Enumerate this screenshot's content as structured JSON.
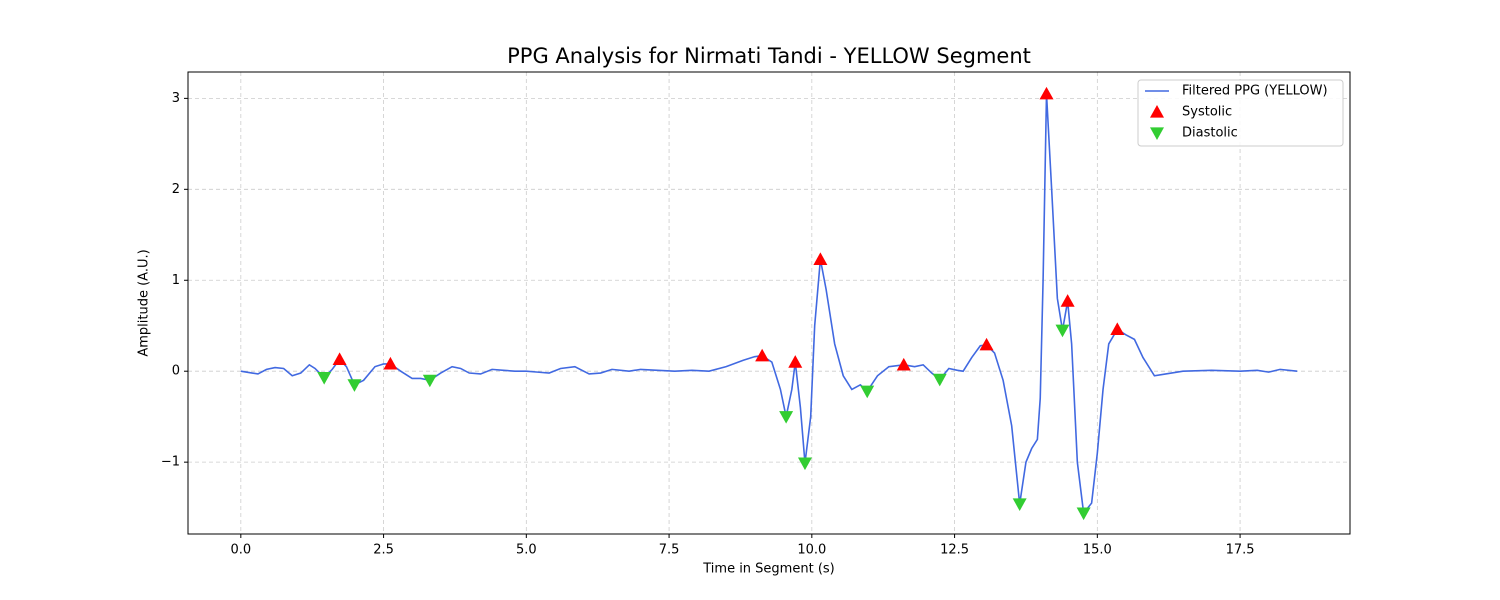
{
  "chart_data": {
    "type": "line",
    "title": "PPG Analysis for Nirmati Tandi - YELLOW Segment",
    "xlabel": "Time in Segment (s)",
    "ylabel": "Amplitude (A.U.)",
    "xlim": [
      -0.925,
      19.425
    ],
    "ylim": [
      -1.79,
      3.29
    ],
    "xticks": [
      {
        "value": 0,
        "label": "0.0"
      },
      {
        "value": 2.5,
        "label": "2.5"
      },
      {
        "value": 5,
        "label": "5.0"
      },
      {
        "value": 7.5,
        "label": "7.5"
      },
      {
        "value": 10,
        "label": "10.0"
      },
      {
        "value": 12.5,
        "label": "12.5"
      },
      {
        "value": 15,
        "label": "15.0"
      },
      {
        "value": 17.5,
        "label": "17.5"
      }
    ],
    "yticks": [
      {
        "value": -1,
        "label": "−1"
      },
      0,
      1,
      2,
      3
    ],
    "grid": true,
    "legend": "upper right",
    "series": [
      {
        "name": "Filtered PPG (YELLOW)",
        "color": "#4169e1",
        "marker": "line",
        "x": [
          0,
          0.2,
          0.3,
          0.45,
          0.6,
          0.75,
          0.9,
          1.05,
          1.2,
          1.3,
          1.46,
          1.6,
          1.73,
          1.85,
          1.99,
          2.15,
          2.35,
          2.5,
          2.62,
          2.8,
          3.0,
          3.15,
          3.31,
          3.5,
          3.7,
          3.85,
          4.0,
          4.2,
          4.4,
          4.6,
          4.8,
          5.0,
          5.2,
          5.4,
          5.6,
          5.85,
          6.1,
          6.3,
          6.5,
          6.8,
          7.0,
          7.3,
          7.6,
          7.9,
          8.2,
          8.5,
          8.8,
          9.0,
          9.13,
          9.3,
          9.45,
          9.55,
          9.65,
          9.71,
          9.8,
          9.88,
          9.98,
          10.05,
          10.15,
          10.25,
          10.4,
          10.55,
          10.7,
          10.85,
          10.97,
          11.15,
          11.35,
          11.61,
          11.8,
          11.95,
          12.1,
          12.24,
          12.4,
          12.55,
          12.65,
          12.8,
          12.95,
          13.06,
          13.2,
          13.35,
          13.5,
          13.64,
          13.75,
          13.85,
          13.95,
          14.0,
          14.05,
          14.11,
          14.2,
          14.3,
          14.39,
          14.48,
          14.55,
          14.65,
          14.76,
          14.9,
          15.0,
          15.1,
          15.2,
          15.35,
          15.5,
          15.65,
          15.8,
          16.0,
          16.2,
          16.5,
          17.0,
          17.5,
          17.8,
          18.0,
          18.2,
          18.5
        ],
        "values": [
          0,
          -0.02,
          -0.03,
          0.02,
          0.04,
          0.03,
          -0.05,
          -0.02,
          0.07,
          0.03,
          -0.07,
          0.02,
          0.13,
          0.05,
          -0.15,
          -0.1,
          0.05,
          0.08,
          0.08,
          0.0,
          -0.08,
          -0.08,
          -0.1,
          -0.02,
          0.05,
          0.03,
          -0.02,
          -0.03,
          0.02,
          0.01,
          0.0,
          0.0,
          -0.01,
          -0.02,
          0.03,
          0.05,
          -0.03,
          -0.02,
          0.02,
          0.0,
          0.02,
          0.01,
          0.0,
          0.01,
          0.0,
          0.05,
          0.12,
          0.16,
          0.17,
          0.1,
          -0.2,
          -0.5,
          -0.2,
          0.1,
          -0.4,
          -1.01,
          -0.5,
          0.5,
          1.23,
          0.9,
          0.3,
          -0.05,
          -0.2,
          -0.15,
          -0.22,
          -0.05,
          0.05,
          0.07,
          0.05,
          0.07,
          -0.02,
          -0.09,
          0.03,
          0.01,
          0.0,
          0.15,
          0.28,
          0.29,
          0.2,
          -0.1,
          -0.6,
          -1.46,
          -1.0,
          -0.85,
          -0.75,
          -0.3,
          1.0,
          3.05,
          2.0,
          0.8,
          0.45,
          0.77,
          0.3,
          -1.0,
          -1.56,
          -1.45,
          -0.9,
          -0.2,
          0.3,
          0.46,
          0.4,
          0.35,
          0.15,
          -0.05,
          -0.03,
          0.0,
          0.01,
          0.0,
          0.01,
          -0.01,
          0.02,
          0.0
        ]
      },
      {
        "name": "Systolic",
        "color": "#ff0000",
        "marker": "triangle-up",
        "x": [
          1.73,
          2.62,
          9.13,
          9.71,
          10.15,
          11.61,
          13.06,
          14.11,
          14.48,
          15.35
        ],
        "values": [
          0.13,
          0.08,
          0.17,
          0.1,
          1.23,
          0.07,
          0.29,
          3.05,
          0.77,
          0.46
        ]
      },
      {
        "name": "Diastolic",
        "color": "#32cd32",
        "marker": "triangle-down",
        "x": [
          1.46,
          1.99,
          3.31,
          9.55,
          9.88,
          10.97,
          12.24,
          13.64,
          14.39,
          14.76
        ],
        "values": [
          -0.07,
          -0.15,
          -0.1,
          -0.5,
          -1.01,
          -0.22,
          -0.09,
          -1.46,
          0.45,
          -1.56
        ]
      }
    ]
  }
}
